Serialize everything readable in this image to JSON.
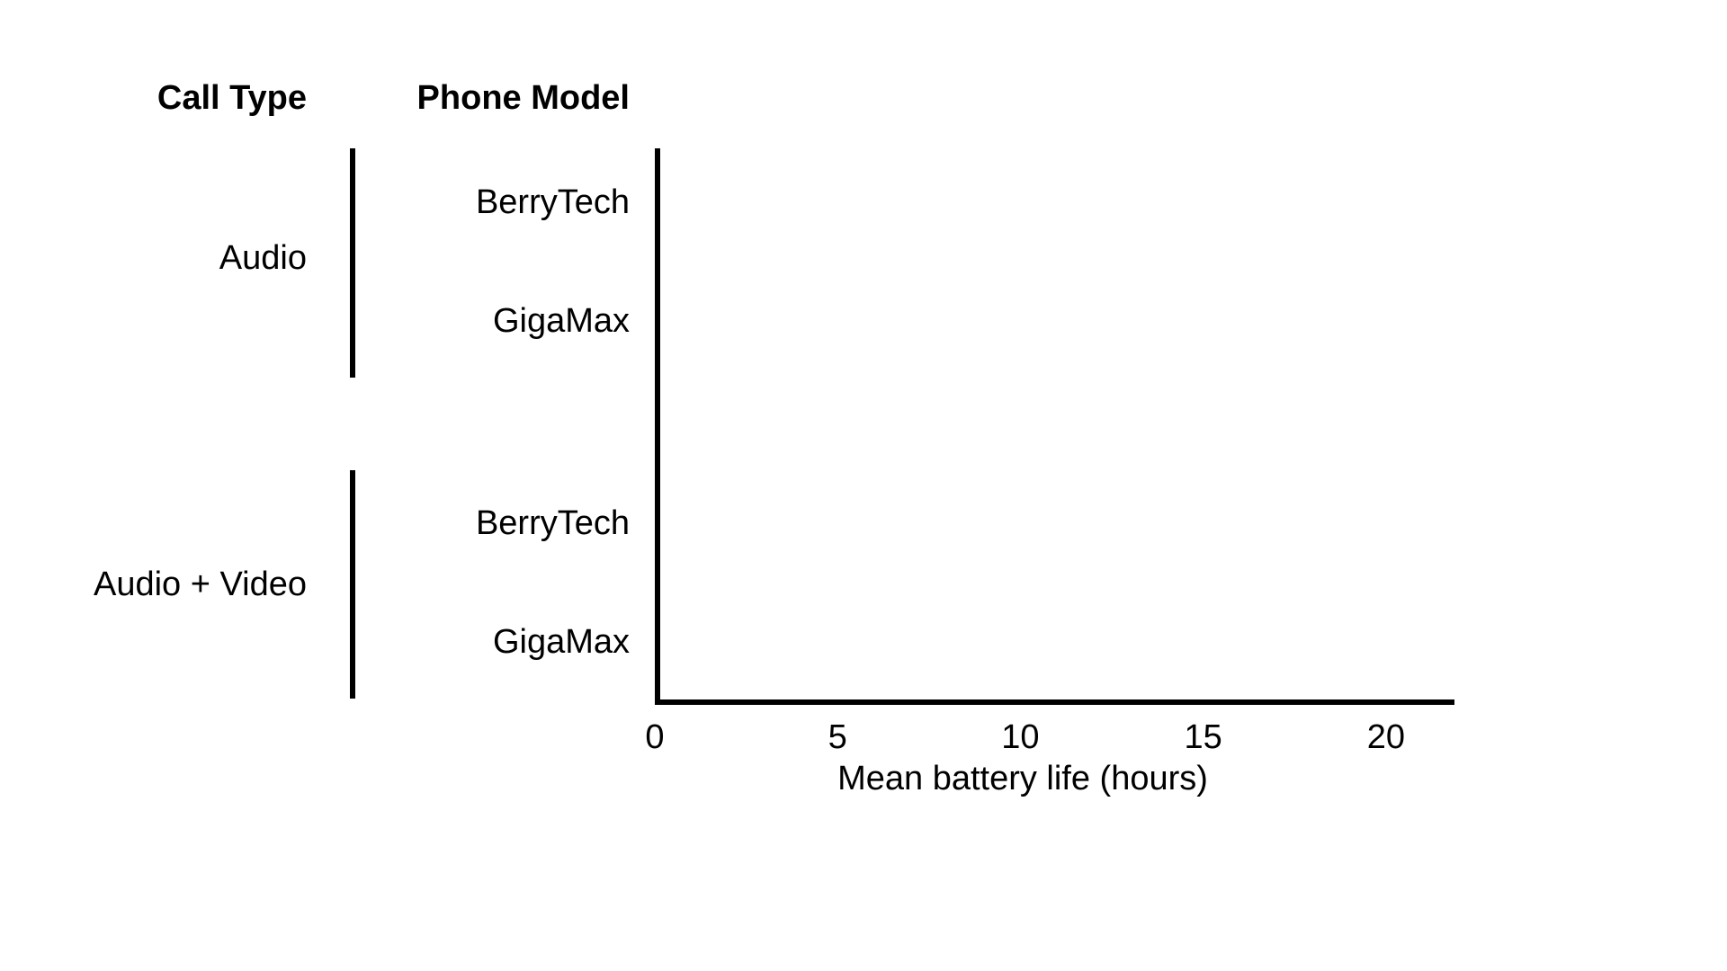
{
  "chart_data": {
    "type": "bar",
    "orientation": "horizontal",
    "headers": {
      "group": "Call Type",
      "category": "Phone Model"
    },
    "groups": [
      {
        "name": "Audio",
        "categories": [
          "BerryTech",
          "GigaMax"
        ],
        "values": [
          null,
          null
        ]
      },
      {
        "name": "Audio + Video",
        "categories": [
          "BerryTech",
          "GigaMax"
        ],
        "values": [
          null,
          null
        ]
      }
    ],
    "xlabel": "Mean battery life (hours)",
    "xlim": [
      0,
      21.8
    ],
    "xticks": [
      0,
      5,
      10,
      15,
      20
    ],
    "grid": false,
    "legend": "none",
    "colors": {
      "axis": "#000000",
      "text": "#000000",
      "background": "#ffffff"
    }
  }
}
